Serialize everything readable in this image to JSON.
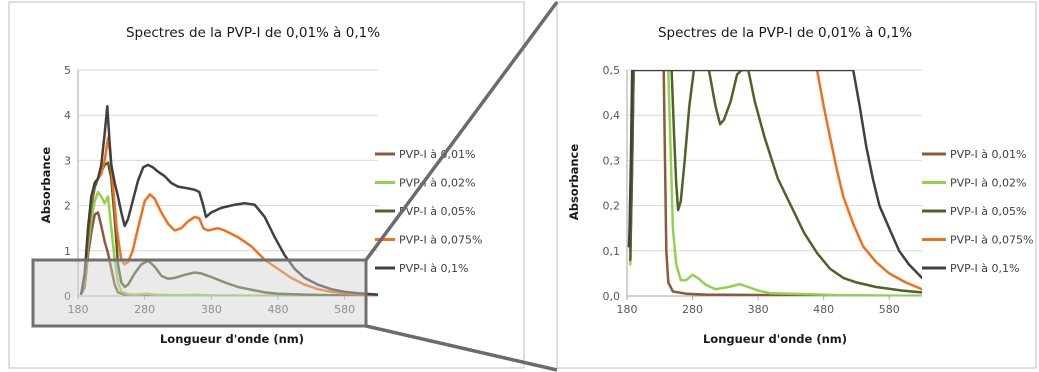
{
  "chart_data": [
    {
      "id": "full",
      "type": "line",
      "title": "Spectres de la PVP-I de 0,01% à 0,1%",
      "xlabel": "Longueur d'onde (nm)",
      "ylabel": "Absorbance",
      "xlim": [
        180,
        630
      ],
      "ylim": [
        0,
        5
      ],
      "xticks": [
        "180",
        "280",
        "380",
        "480",
        "580"
      ],
      "yticks": [
        "0",
        "1",
        "2",
        "3",
        "4",
        "5"
      ],
      "grid": "horizontal",
      "legend": "right",
      "series": [
        {
          "name": "PVP-I à 0,01%",
          "color": "#8B5A3C",
          "points": [
            [
              185,
              0.05
            ],
            [
              190,
              0.2
            ],
            [
              195,
              0.9
            ],
            [
              200,
              1.4
            ],
            [
              205,
              1.8
            ],
            [
              210,
              1.85
            ],
            [
              215,
              1.55
            ],
            [
              220,
              1.2
            ],
            [
              225,
              0.95
            ],
            [
              230,
              0.6
            ],
            [
              235,
              0.25
            ],
            [
              240,
              0.08
            ],
            [
              250,
              0.03
            ],
            [
              300,
              0.01
            ],
            [
              630,
              0.0
            ]
          ]
        },
        {
          "name": "PVP-I à 0,02%",
          "color": "#92D050",
          "points": [
            [
              185,
              0.05
            ],
            [
              190,
              0.3
            ],
            [
              195,
              1.1
            ],
            [
              200,
              1.7
            ],
            [
              205,
              2.1
            ],
            [
              210,
              2.3
            ],
            [
              215,
              2.2
            ],
            [
              220,
              2.05
            ],
            [
              225,
              2.2
            ],
            [
              230,
              1.5
            ],
            [
              235,
              0.8
            ],
            [
              240,
              0.3
            ],
            [
              245,
              0.1
            ],
            [
              255,
              0.04
            ],
            [
              270,
              0.03
            ],
            [
              282,
              0.05
            ],
            [
              295,
              0.03
            ],
            [
              320,
              0.015
            ],
            [
              340,
              0.02
            ],
            [
              355,
              0.025
            ],
            [
              380,
              0.01
            ],
            [
              450,
              0.005
            ],
            [
              630,
              0.0
            ]
          ]
        },
        {
          "name": "PVP-I à 0,05%",
          "color": "#4F6228",
          "points": [
            [
              185,
              0.05
            ],
            [
              190,
              0.4
            ],
            [
              195,
              1.3
            ],
            [
              200,
              2.0
            ],
            [
              205,
              2.4
            ],
            [
              210,
              2.6
            ],
            [
              215,
              2.75
            ],
            [
              220,
              2.9
            ],
            [
              225,
              2.95
            ],
            [
              230,
              2.6
            ],
            [
              235,
              1.7
            ],
            [
              240,
              0.7
            ],
            [
              245,
              0.3
            ],
            [
              250,
              0.2
            ],
            [
              255,
              0.25
            ],
            [
              265,
              0.5
            ],
            [
              275,
              0.7
            ],
            [
              285,
              0.78
            ],
            [
              295,
              0.65
            ],
            [
              305,
              0.45
            ],
            [
              315,
              0.38
            ],
            [
              325,
              0.4
            ],
            [
              340,
              0.47
            ],
            [
              355,
              0.52
            ],
            [
              365,
              0.5
            ],
            [
              380,
              0.42
            ],
            [
              400,
              0.3
            ],
            [
              420,
              0.2
            ],
            [
              440,
              0.14
            ],
            [
              460,
              0.08
            ],
            [
              480,
              0.05
            ],
            [
              520,
              0.03
            ],
            [
              560,
              0.015
            ],
            [
              630,
              0.005
            ]
          ]
        },
        {
          "name": "PVP-I à 0,075%",
          "color": "#F07020",
          "points": [
            [
              185,
              0.05
            ],
            [
              190,
              0.4
            ],
            [
              195,
              1.4
            ],
            [
              200,
              2.1
            ],
            [
              205,
              2.5
            ],
            [
              210,
              2.6
            ],
            [
              215,
              2.7
            ],
            [
              220,
              3.0
            ],
            [
              225,
              3.5
            ],
            [
              228,
              3.2
            ],
            [
              232,
              2.5
            ],
            [
              238,
              1.5
            ],
            [
              245,
              0.8
            ],
            [
              250,
              0.7
            ],
            [
              255,
              0.75
            ],
            [
              262,
              1.0
            ],
            [
              270,
              1.5
            ],
            [
              280,
              2.1
            ],
            [
              288,
              2.25
            ],
            [
              295,
              2.15
            ],
            [
              305,
              1.85
            ],
            [
              315,
              1.6
            ],
            [
              325,
              1.45
            ],
            [
              335,
              1.5
            ],
            [
              345,
              1.65
            ],
            [
              355,
              1.75
            ],
            [
              362,
              1.72
            ],
            [
              368,
              1.5
            ],
            [
              375,
              1.45
            ],
            [
              390,
              1.5
            ],
            [
              400,
              1.45
            ],
            [
              420,
              1.3
            ],
            [
              440,
              1.1
            ],
            [
              460,
              0.8
            ],
            [
              480,
              0.6
            ],
            [
              500,
              0.4
            ],
            [
              520,
              0.25
            ],
            [
              540,
              0.15
            ],
            [
              560,
              0.09
            ],
            [
              580,
              0.06
            ],
            [
              600,
              0.04
            ],
            [
              630,
              0.02
            ]
          ]
        },
        {
          "name": "PVP-I à 0,1%",
          "color": "#404040",
          "points": [
            [
              185,
              0.05
            ],
            [
              190,
              0.5
            ],
            [
              195,
              1.5
            ],
            [
              200,
              2.2
            ],
            [
              205,
              2.5
            ],
            [
              210,
              2.6
            ],
            [
              215,
              2.9
            ],
            [
              220,
              3.6
            ],
            [
              224,
              4.2
            ],
            [
              227,
              3.5
            ],
            [
              230,
              2.9
            ],
            [
              235,
              2.5
            ],
            [
              240,
              2.2
            ],
            [
              245,
              1.85
            ],
            [
              250,
              1.55
            ],
            [
              255,
              1.7
            ],
            [
              262,
              2.1
            ],
            [
              270,
              2.55
            ],
            [
              278,
              2.85
            ],
            [
              285,
              2.9
            ],
            [
              292,
              2.85
            ],
            [
              300,
              2.75
            ],
            [
              310,
              2.65
            ],
            [
              320,
              2.5
            ],
            [
              330,
              2.42
            ],
            [
              345,
              2.38
            ],
            [
              355,
              2.35
            ],
            [
              362,
              2.3
            ],
            [
              368,
              2.0
            ],
            [
              372,
              1.75
            ],
            [
              380,
              1.85
            ],
            [
              395,
              1.95
            ],
            [
              415,
              2.02
            ],
            [
              430,
              2.05
            ],
            [
              445,
              2.02
            ],
            [
              460,
              1.75
            ],
            [
              475,
              1.3
            ],
            [
              490,
              0.9
            ],
            [
              505,
              0.6
            ],
            [
              520,
              0.4
            ],
            [
              540,
              0.25
            ],
            [
              560,
              0.15
            ],
            [
              580,
              0.09
            ],
            [
              600,
              0.06
            ],
            [
              630,
              0.03
            ]
          ]
        }
      ]
    },
    {
      "id": "zoom",
      "type": "line",
      "title": "Spectres de la PVP-I de 0,01% à 0,1%",
      "xlabel": "Longueur d'onde (nm)",
      "ylabel": "Absorbance",
      "xlim": [
        180,
        630
      ],
      "ylim": [
        0,
        0.5
      ],
      "xticks": [
        "180",
        "280",
        "380",
        "480",
        "580"
      ],
      "yticks": [
        "0,0",
        "0,1",
        "0,2",
        "0,3",
        "0,4",
        "0,5"
      ],
      "grid": "horizontal",
      "legend": "right",
      "series": [
        {
          "name": "PVP-I à 0,01%",
          "color": "#8B5A3C",
          "points": [
            [
              185,
              0.1
            ],
            [
              188,
              0.3
            ],
            [
              190,
              0.5
            ],
            [
              230,
              0.6
            ],
            [
              236,
              0.5
            ],
            [
              238,
              0.3
            ],
            [
              240,
              0.1
            ],
            [
              243,
              0.03
            ],
            [
              250,
              0.01
            ],
            [
              270,
              0.005
            ],
            [
              300,
              0.003
            ],
            [
              630,
              0.0
            ]
          ]
        },
        {
          "name": "PVP-I à 0,02%",
          "color": "#92D050",
          "points": [
            [
              185,
              0.07
            ],
            [
              188,
              0.3
            ],
            [
              190,
              0.5
            ],
            [
              236,
              0.6
            ],
            [
              243,
              0.5
            ],
            [
              247,
              0.3
            ],
            [
              250,
              0.15
            ],
            [
              255,
              0.07
            ],
            [
              262,
              0.035
            ],
            [
              270,
              0.035
            ],
            [
              280,
              0.047
            ],
            [
              288,
              0.04
            ],
            [
              300,
              0.025
            ],
            [
              315,
              0.015
            ],
            [
              335,
              0.02
            ],
            [
              352,
              0.026
            ],
            [
              365,
              0.02
            ],
            [
              380,
              0.012
            ],
            [
              400,
              0.006
            ],
            [
              430,
              0.005
            ],
            [
              460,
              0.004
            ],
            [
              500,
              0.002
            ],
            [
              630,
              0.0
            ]
          ]
        },
        {
          "name": "PVP-I à 0,05%",
          "color": "#4F6228",
          "points": [
            [
              185,
              0.08
            ],
            [
              188,
              0.3
            ],
            [
              190,
              0.5
            ],
            [
              242,
              0.6
            ],
            [
              248,
              0.5
            ],
            [
              252,
              0.35
            ],
            [
              255,
              0.25
            ],
            [
              258,
              0.19
            ],
            [
              262,
              0.21
            ],
            [
              268,
              0.3
            ],
            [
              275,
              0.42
            ],
            [
              282,
              0.5
            ],
            [
              290,
              0.6
            ],
            [
              305,
              0.5
            ],
            [
              315,
              0.42
            ],
            [
              322,
              0.38
            ],
            [
              328,
              0.39
            ],
            [
              338,
              0.43
            ],
            [
              348,
              0.49
            ],
            [
              355,
              0.5
            ],
            [
              365,
              0.5
            ],
            [
              375,
              0.43
            ],
            [
              390,
              0.35
            ],
            [
              410,
              0.26
            ],
            [
              430,
              0.2
            ],
            [
              450,
              0.14
            ],
            [
              470,
              0.095
            ],
            [
              490,
              0.06
            ],
            [
              510,
              0.04
            ],
            [
              530,
              0.03
            ],
            [
              560,
              0.02
            ],
            [
              600,
              0.012
            ],
            [
              630,
              0.008
            ]
          ]
        },
        {
          "name": "PVP-I à 0,075%",
          "color": "#F07020",
          "points": [
            [
              470,
              0.5
            ],
            [
              480,
              0.42
            ],
            [
              490,
              0.35
            ],
            [
              500,
              0.28
            ],
            [
              510,
              0.22
            ],
            [
              525,
              0.16
            ],
            [
              540,
              0.11
            ],
            [
              560,
              0.075
            ],
            [
              580,
              0.05
            ],
            [
              605,
              0.03
            ],
            [
              630,
              0.015
            ]
          ]
        },
        {
          "name": "PVP-I à 0,1%",
          "color": "#404040",
          "points": [
            [
              183,
              0.11
            ],
            [
              184,
              0.15
            ],
            [
              186,
              0.3
            ],
            [
              188,
              0.5
            ],
            [
              525,
              0.5
            ],
            [
              535,
              0.42
            ],
            [
              545,
              0.33
            ],
            [
              555,
              0.26
            ],
            [
              565,
              0.2
            ],
            [
              580,
              0.15
            ],
            [
              595,
              0.1
            ],
            [
              610,
              0.07
            ],
            [
              630,
              0.04
            ]
          ]
        }
      ]
    }
  ]
}
